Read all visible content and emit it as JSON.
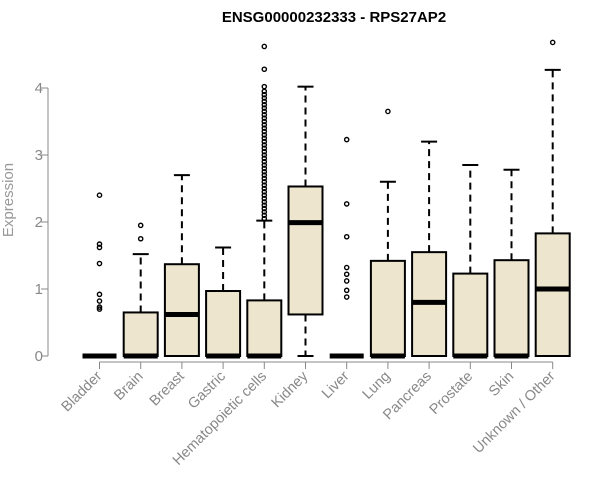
{
  "chart_data": {
    "type": "boxplot",
    "title": "ENSG00000232333 - RPS27AP2",
    "ylabel": "Expression",
    "ylim": [
      0,
      4.7
    ],
    "yticks": [
      0,
      1,
      2,
      3,
      4
    ],
    "grid": false,
    "legend": "none",
    "colors": {
      "box_fill": "#ede5cd",
      "stroke": "#000000",
      "axis": "#888888"
    },
    "categories": [
      "Bladder",
      "Brain",
      "Breast",
      "Gastric",
      "Hematopoietic cells",
      "Kidney",
      "Liver",
      "Lung",
      "Pancreas",
      "Prostate",
      "Skin",
      "Unknown / Other"
    ],
    "boxes": [
      {
        "name": "Bladder",
        "q1": 0,
        "median": 0,
        "q3": 0,
        "whisker_low": 0,
        "whisker_high": 0,
        "outliers": [
          2.4,
          1.67,
          1.62,
          1.38,
          0.92,
          0.82,
          0.73,
          0.7
        ]
      },
      {
        "name": "Brain",
        "q1": 0,
        "median": 0,
        "q3": 0.65,
        "whisker_low": 0,
        "whisker_high": 1.52,
        "outliers": [
          1.95,
          1.75
        ]
      },
      {
        "name": "Breast",
        "q1": 0,
        "median": 0.62,
        "q3": 1.37,
        "whisker_low": 0,
        "whisker_high": 2.7,
        "outliers": []
      },
      {
        "name": "Gastric",
        "q1": 0,
        "median": 0,
        "q3": 0.97,
        "whisker_low": 0,
        "whisker_high": 1.62,
        "outliers": []
      },
      {
        "name": "Hematopoietic cells",
        "q1": 0,
        "median": 0,
        "q3": 0.83,
        "whisker_low": 0,
        "whisker_high": 2.02,
        "outliers": [
          4.62,
          4.28,
          4.02,
          3.95,
          3.9,
          3.85,
          3.8,
          3.75,
          3.7,
          3.65,
          3.6,
          3.55,
          3.5,
          3.45,
          3.4,
          3.35,
          3.3,
          3.25,
          3.2,
          3.15,
          3.1,
          3.05,
          3.0,
          2.95,
          2.9,
          2.85,
          2.8,
          2.75,
          2.7,
          2.65,
          2.6,
          2.55,
          2.5,
          2.45,
          2.4,
          2.35,
          2.3,
          2.25,
          2.2,
          2.15,
          2.1,
          2.05
        ]
      },
      {
        "name": "Kidney",
        "q1": 0.62,
        "median": 1.99,
        "q3": 2.53,
        "whisker_low": 0,
        "whisker_high": 4.02,
        "outliers": []
      },
      {
        "name": "Liver",
        "q1": 0,
        "median": 0,
        "q3": 0,
        "whisker_low": 0,
        "whisker_high": 0,
        "outliers": [
          3.23,
          2.27,
          1.78,
          1.32,
          1.22,
          1.12,
          0.98,
          0.88
        ]
      },
      {
        "name": "Lung",
        "q1": 0,
        "median": 0,
        "q3": 1.42,
        "whisker_low": 0,
        "whisker_high": 2.6,
        "outliers": [
          3.65
        ]
      },
      {
        "name": "Pancreas",
        "q1": 0,
        "median": 0.8,
        "q3": 1.55,
        "whisker_low": 0,
        "whisker_high": 3.2,
        "outliers": []
      },
      {
        "name": "Prostate",
        "q1": 0,
        "median": 0,
        "q3": 1.23,
        "whisker_low": 0,
        "whisker_high": 2.85,
        "outliers": []
      },
      {
        "name": "Skin",
        "q1": 0,
        "median": 0,
        "q3": 1.43,
        "whisker_low": 0,
        "whisker_high": 2.78,
        "outliers": []
      },
      {
        "name": "Unknown / Other",
        "q1": 0,
        "median": 1.0,
        "q3": 1.83,
        "whisker_low": 0,
        "whisker_high": 4.27,
        "outliers": [
          4.68
        ]
      }
    ]
  }
}
